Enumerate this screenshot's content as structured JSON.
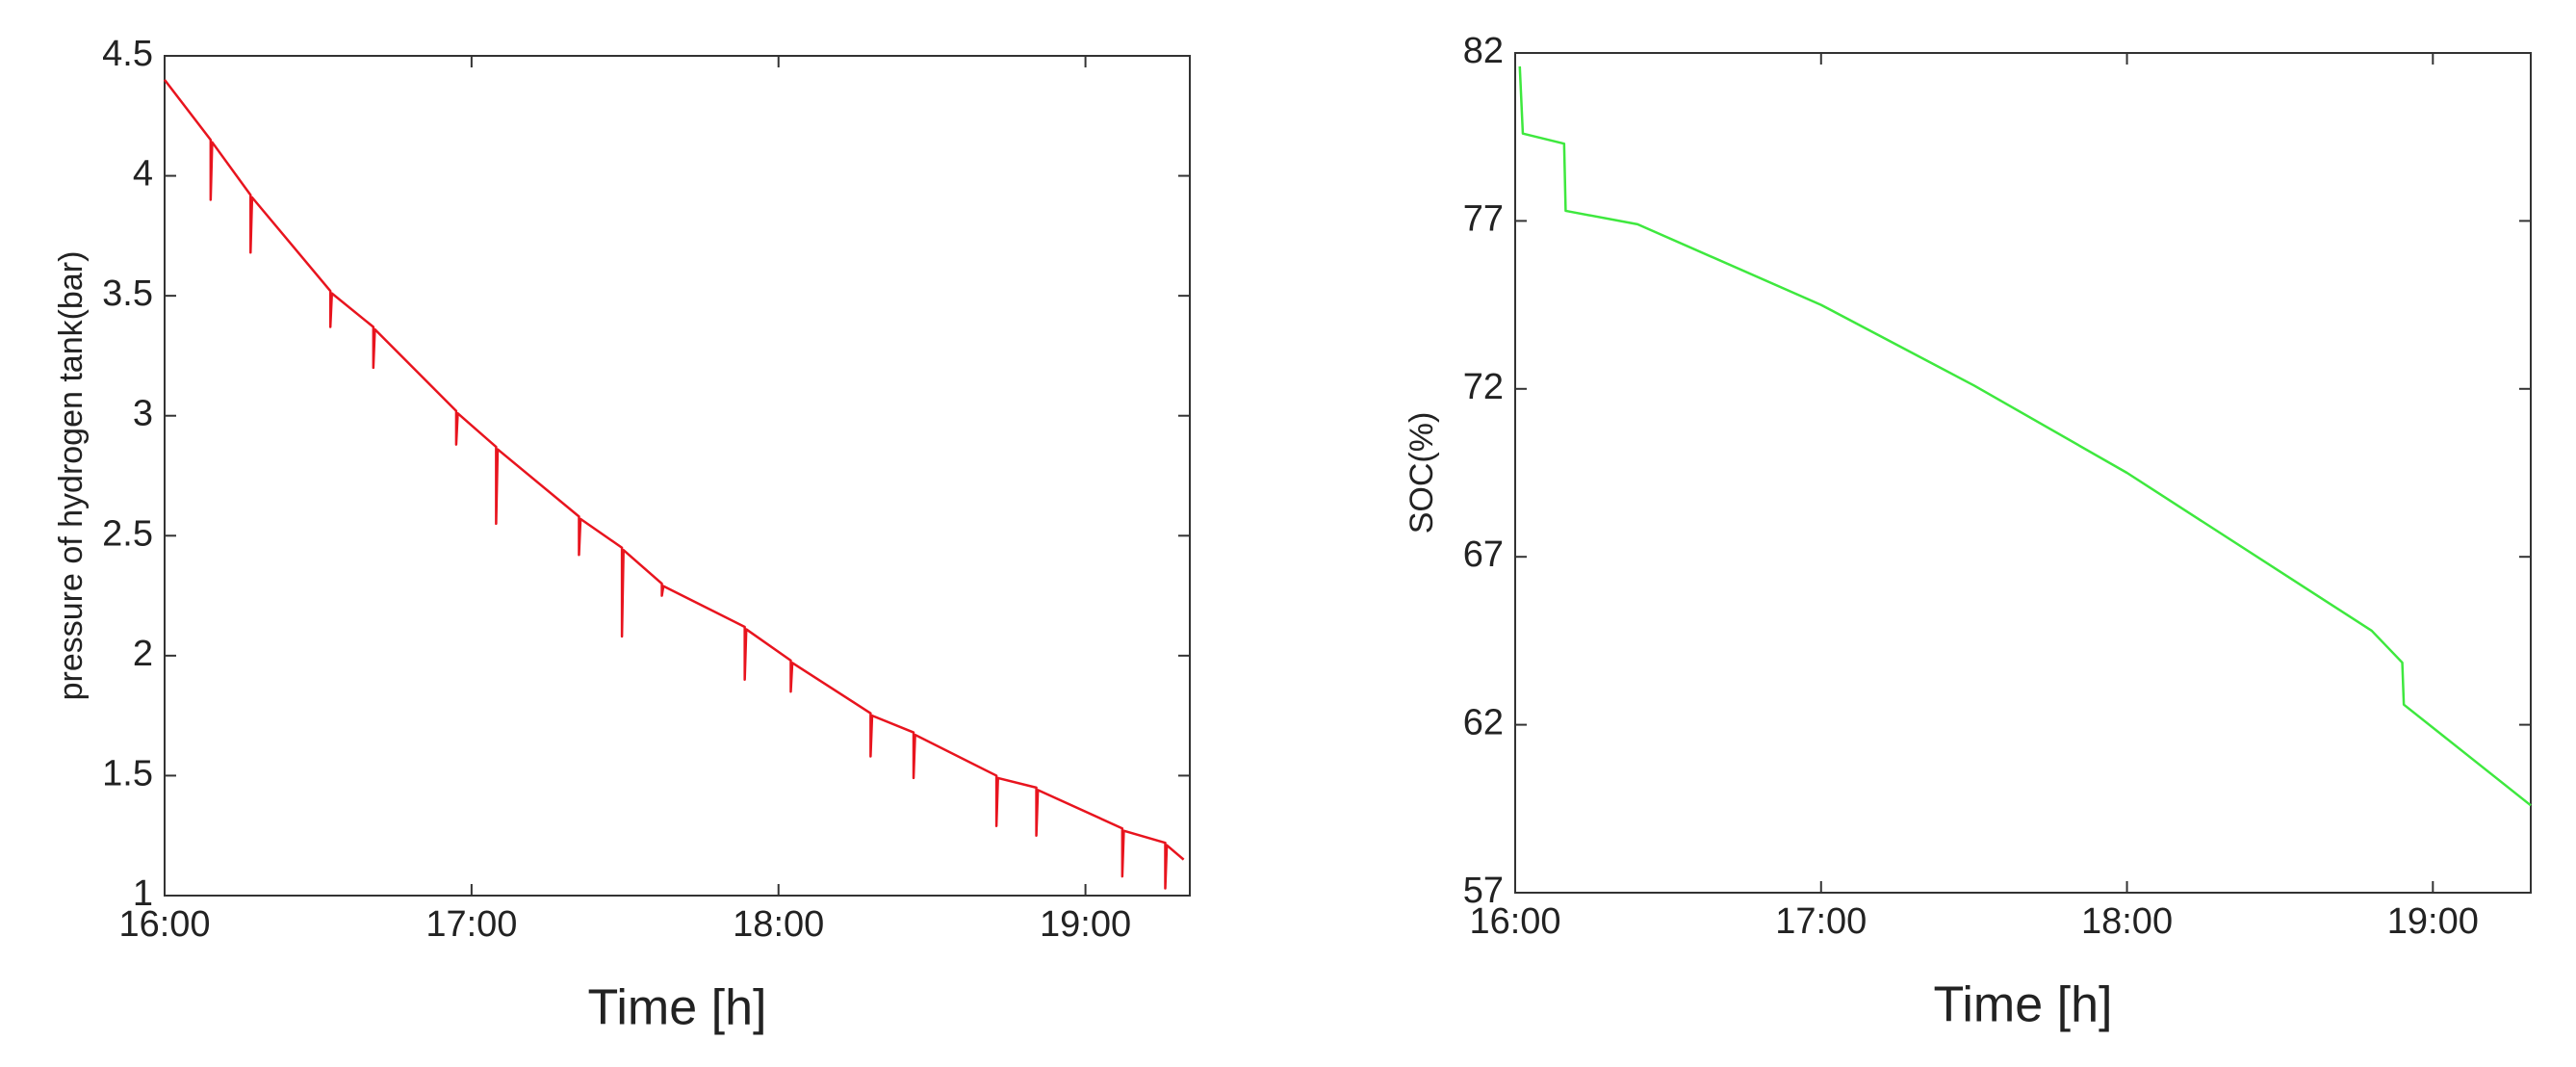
{
  "chart_data": [
    {
      "type": "line",
      "xlabel": "Time [h]",
      "ylabel": "pressure of hydrogen tank(bar)",
      "color": "#e8141e",
      "xlim": [
        16,
        19.34
      ],
      "xticks": [
        {
          "value": 16,
          "label": "16:00"
        },
        {
          "value": 17,
          "label": "17:00"
        },
        {
          "value": 18,
          "label": "18:00"
        },
        {
          "value": 19,
          "label": "19:00"
        }
      ],
      "ylim": [
        1,
        4.5
      ],
      "yticks": [
        1,
        1.5,
        2,
        2.5,
        3,
        3.5,
        4,
        4.5
      ],
      "x": [
        16.0,
        16.15,
        16.15,
        16.155,
        16.28,
        16.28,
        16.285,
        16.54,
        16.54,
        16.545,
        16.68,
        16.68,
        16.685,
        16.95,
        16.95,
        16.955,
        17.08,
        17.08,
        17.085,
        17.35,
        17.35,
        17.355,
        17.49,
        17.49,
        17.495,
        17.62,
        17.62,
        17.625,
        17.89,
        17.89,
        17.895,
        18.04,
        18.04,
        18.045,
        18.3,
        18.3,
        18.305,
        18.44,
        18.44,
        18.445,
        18.71,
        18.71,
        18.715,
        18.84,
        18.84,
        18.845,
        19.12,
        19.12,
        19.125,
        19.26,
        19.26,
        19.265,
        19.32
      ],
      "values": [
        4.4,
        4.15,
        3.9,
        4.14,
        3.92,
        3.68,
        3.91,
        3.52,
        3.37,
        3.51,
        3.37,
        3.2,
        3.36,
        3.02,
        2.88,
        3.01,
        2.87,
        2.55,
        2.86,
        2.58,
        2.42,
        2.57,
        2.45,
        2.08,
        2.44,
        2.3,
        2.25,
        2.29,
        2.12,
        1.9,
        2.11,
        1.98,
        1.85,
        1.97,
        1.76,
        1.58,
        1.75,
        1.68,
        1.49,
        1.67,
        1.5,
        1.29,
        1.49,
        1.45,
        1.25,
        1.44,
        1.28,
        1.08,
        1.27,
        1.22,
        1.03,
        1.21,
        1.15
      ]
    },
    {
      "type": "line",
      "xlabel": "Time [h]",
      "ylabel": "SOC(%)",
      "color": "#3ee83e",
      "xlim": [
        16,
        19.32
      ],
      "xticks": [
        {
          "value": 16,
          "label": "16:00"
        },
        {
          "value": 17,
          "label": "17:00"
        },
        {
          "value": 18,
          "label": "18:00"
        },
        {
          "value": 19,
          "label": "19:00"
        }
      ],
      "ylim": [
        57,
        82
      ],
      "yticks": [
        57,
        62,
        67,
        72,
        77,
        82
      ],
      "x": [
        16.015,
        16.025,
        16.16,
        16.165,
        16.4,
        17.0,
        17.5,
        18.0,
        18.8,
        18.9,
        18.905,
        19.32
      ],
      "values": [
        81.6,
        79.6,
        79.3,
        77.3,
        76.9,
        74.5,
        72.1,
        69.5,
        64.8,
        63.85,
        62.6,
        59.6
      ]
    }
  ]
}
